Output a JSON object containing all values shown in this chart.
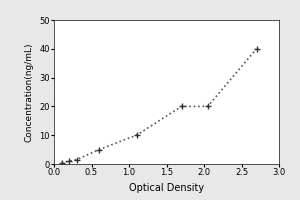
{
  "x": [
    0.1,
    0.2,
    0.3,
    0.6,
    1.1,
    1.7,
    2.05,
    2.7
  ],
  "y": [
    0.5,
    1.0,
    1.5,
    5.0,
    10.0,
    20.0,
    20.0,
    40.0
  ],
  "xlabel": "Optical Density",
  "ylabel": "Concentration(ng/mL)",
  "xlim": [
    0,
    3
  ],
  "ylim": [
    0,
    50
  ],
  "xticks": [
    0,
    0.5,
    1,
    1.5,
    2,
    2.5,
    3
  ],
  "yticks": [
    0,
    10,
    20,
    30,
    40,
    50
  ],
  "marker": "+",
  "marker_size": 5,
  "line_style": ":",
  "line_color": "#555555",
  "marker_color": "#333333",
  "line_width": 1.2,
  "background_color": "#e8e8e8",
  "plot_background": "#ffffff",
  "xlabel_fontsize": 7,
  "ylabel_fontsize": 6.5,
  "tick_fontsize": 6
}
